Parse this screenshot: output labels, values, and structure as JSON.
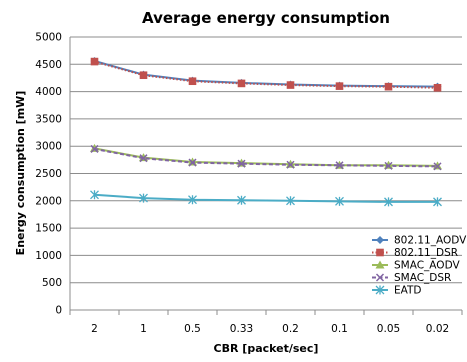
{
  "chart_data": {
    "type": "line",
    "title": "Average energy consumption",
    "xlabel": "CBR [packet/sec]",
    "ylabel": "Energy consumption [mW]",
    "categories": [
      "2",
      "1",
      "0.5",
      "0.33",
      "0.2",
      "0.1",
      "0.05",
      "0.02"
    ],
    "ylim": [
      0,
      5000
    ],
    "yticks": [
      0,
      500,
      1000,
      1500,
      2000,
      2500,
      3000,
      3500,
      4000,
      4500,
      5000
    ],
    "grid": "horizontal",
    "legend_position": "right-bottom",
    "series": [
      {
        "name": "802.11_AODV",
        "color": "#4f81bd",
        "marker": "diamond",
        "line": "solid",
        "values": [
          4560,
          4310,
          4200,
          4160,
          4130,
          4110,
          4100,
          4090
        ]
      },
      {
        "name": "802.11_DSR",
        "color": "#c0504d",
        "marker": "square",
        "line": "dotted",
        "values": [
          4550,
          4300,
          4190,
          4150,
          4120,
          4100,
          4090,
          4070
        ]
      },
      {
        "name": "SMAC_AODV",
        "color": "#9bbb59",
        "marker": "triangle",
        "line": "solid",
        "values": [
          2960,
          2790,
          2710,
          2690,
          2670,
          2650,
          2650,
          2640
        ]
      },
      {
        "name": "SMAC_DSR",
        "color": "#8064a2",
        "marker": "x",
        "line": "dashed",
        "values": [
          2950,
          2780,
          2700,
          2680,
          2660,
          2650,
          2640,
          2630
        ]
      },
      {
        "name": "EATD",
        "color": "#4bacc6",
        "marker": "star",
        "line": "solid",
        "values": [
          2110,
          2050,
          2020,
          2010,
          2000,
          1990,
          1980,
          1980
        ]
      }
    ]
  }
}
